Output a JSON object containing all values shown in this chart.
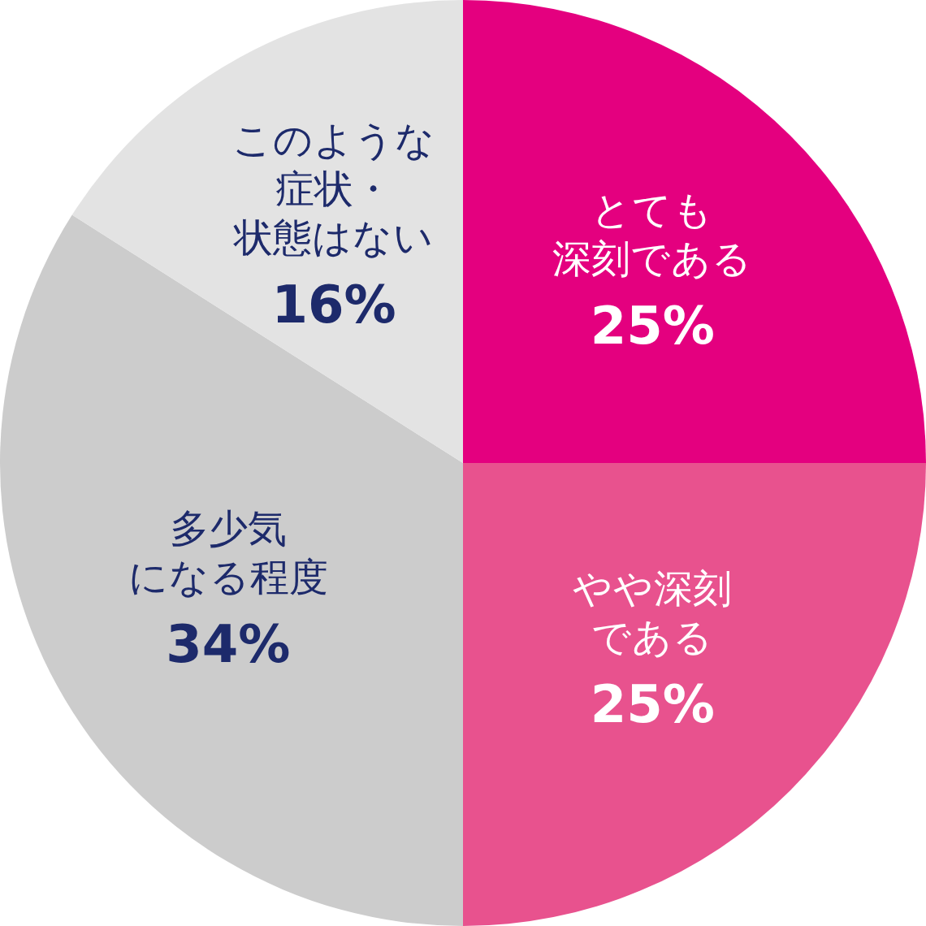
{
  "chart_data": {
    "type": "pie",
    "categories": [
      "とても深刻である",
      "やや深刻である",
      "多少気になる程度",
      "このような症状・状態はない"
    ],
    "values": [
      25,
      25,
      34,
      16
    ],
    "value_labels": [
      "25%",
      "25%",
      "34%",
      "16%"
    ],
    "colors": [
      "#e4007f",
      "#e8528e",
      "#cccccc",
      "#e3e3e3"
    ]
  }
}
